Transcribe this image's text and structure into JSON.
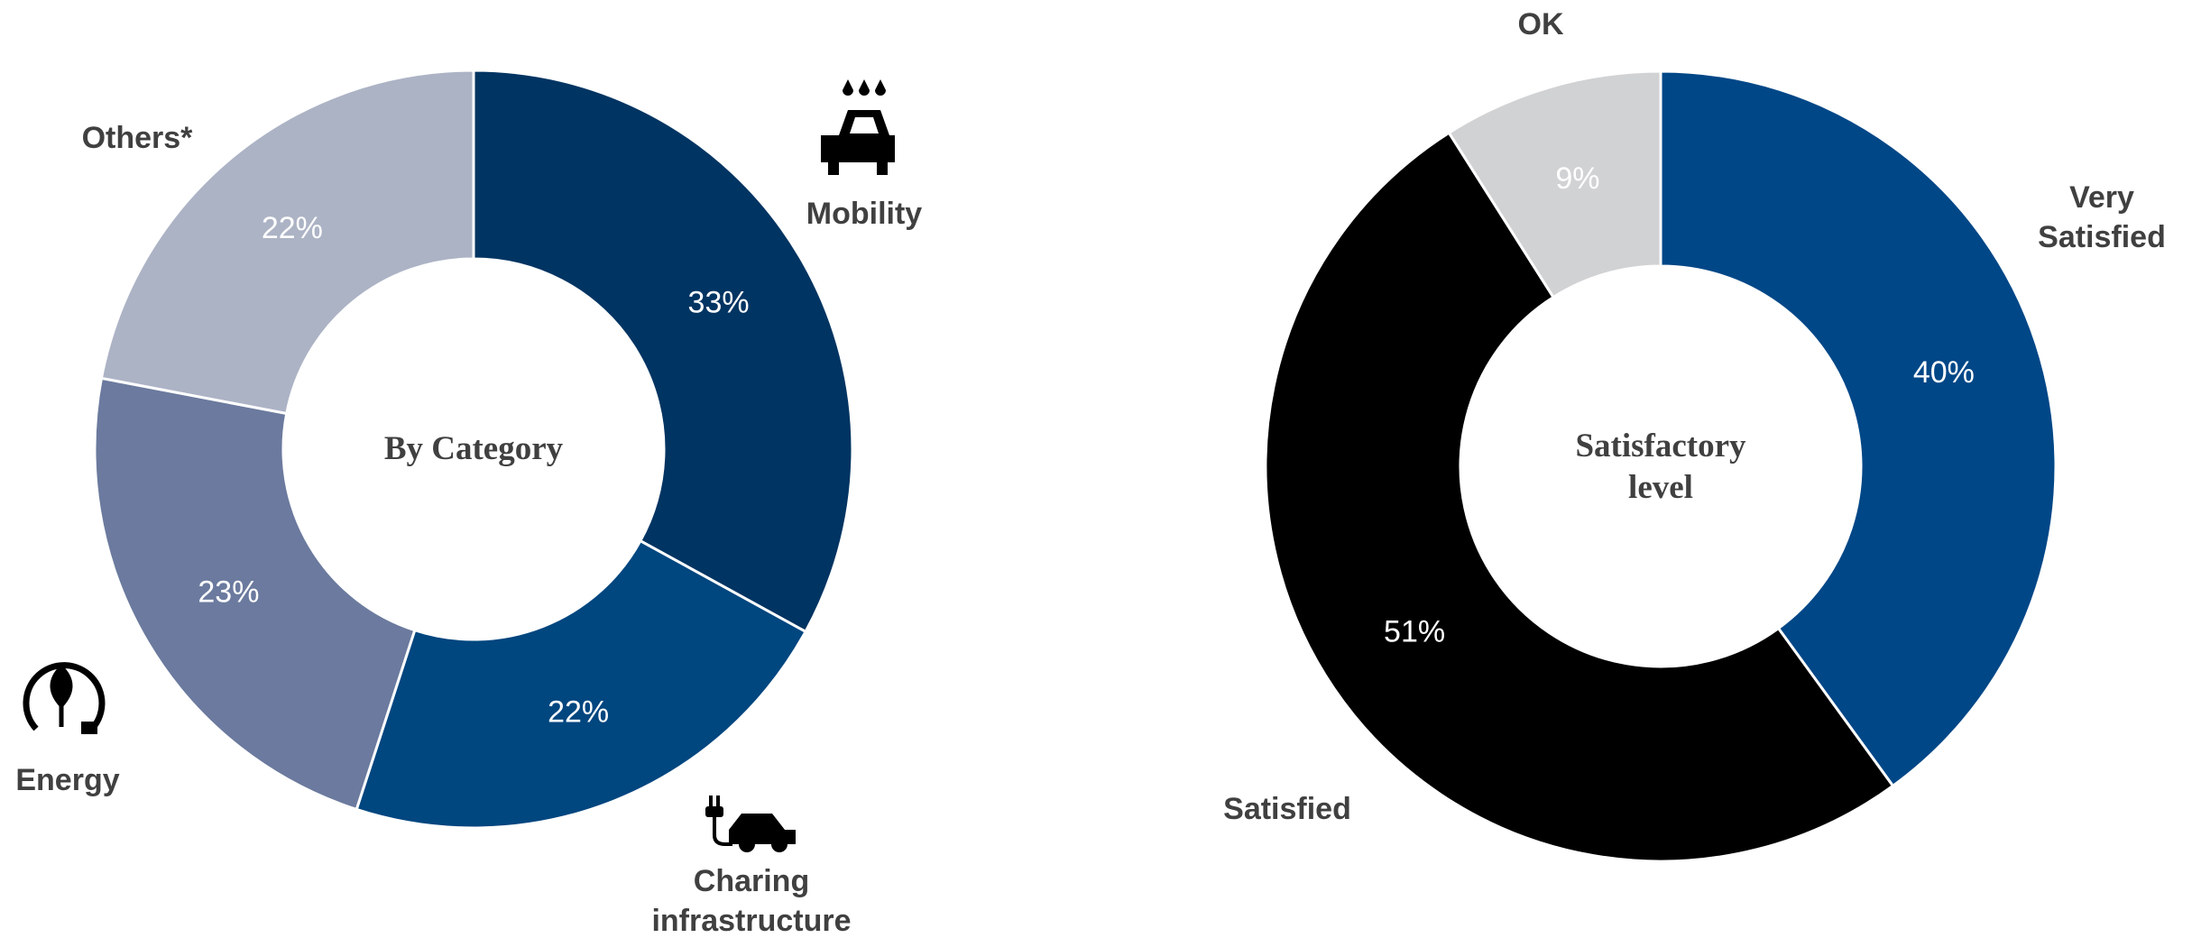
{
  "chart_data": [
    {
      "type": "donut",
      "center_label": "By Category",
      "categories": [
        "Mobility",
        "Charing infrastructure",
        "Energy",
        "Others*"
      ],
      "values": [
        33,
        22,
        23,
        22
      ],
      "value_labels": [
        "33%",
        "22%",
        "23%",
        "22%"
      ],
      "colors": [
        "#003462",
        "#00467f",
        "#6b7a9e",
        "#acb3c5"
      ]
    },
    {
      "type": "donut",
      "center_label": "Satisfactory level",
      "categories": [
        "Very Satisfied",
        "Satisfied",
        "OK"
      ],
      "values": [
        40,
        51,
        9
      ],
      "value_labels": [
        "40%",
        "51%",
        "9%"
      ],
      "colors": [
        "#004787",
        "#000000",
        "#d1d2d4"
      ]
    }
  ]
}
